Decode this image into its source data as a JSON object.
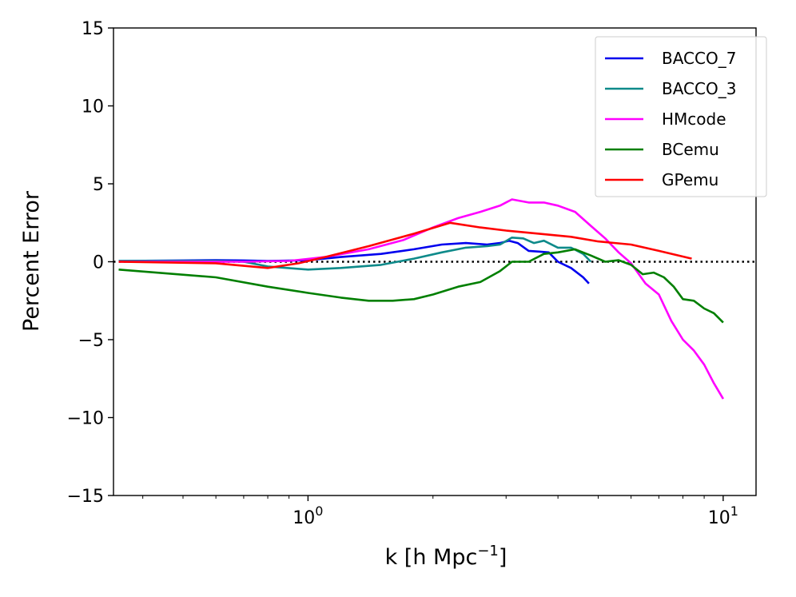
{
  "chart_data": {
    "type": "line",
    "title": "",
    "xlabel": "k [h Mpc",
    "xlabel_sup": "−1",
    "xlabel_end": "]",
    "ylabel": "Percent Error",
    "xscale": "log",
    "xlim": [
      0.34,
      12
    ],
    "ylim": [
      -15,
      15
    ],
    "yticks": [
      {
        "value": 15,
        "label": "15"
      },
      {
        "value": 10,
        "label": "10"
      },
      {
        "value": 5,
        "label": "5"
      },
      {
        "value": 0,
        "label": "0"
      },
      {
        "value": -5,
        "label": "−5"
      },
      {
        "value": -10,
        "label": "−10"
      },
      {
        "value": -15,
        "label": "−15"
      }
    ],
    "xticks": [
      {
        "value": 1,
        "base": "10",
        "exp": "0"
      },
      {
        "value": 10,
        "base": "10",
        "exp": "1"
      }
    ],
    "legend_position": "top-right",
    "reference_line": {
      "y": 0,
      "style": "dotted",
      "color": "#000000"
    },
    "series": [
      {
        "name": "BACCO_7",
        "color": "#0000ee",
        "x": [
          0.35,
          0.5,
          0.6,
          0.7,
          0.8,
          1.0,
          1.2,
          1.5,
          1.8,
          2.1,
          2.4,
          2.7,
          2.9,
          3.05,
          3.2,
          3.4,
          3.6,
          3.8,
          4.0,
          4.3,
          4.6,
          4.75
        ],
        "y": [
          0.05,
          0.08,
          0.1,
          0.08,
          0.05,
          0.1,
          0.3,
          0.5,
          0.8,
          1.1,
          1.2,
          1.1,
          1.2,
          1.35,
          1.2,
          0.7,
          0.65,
          0.6,
          0.0,
          -0.4,
          -1.0,
          -1.4
        ]
      },
      {
        "name": "BACCO_3",
        "color": "#0e8a8a",
        "x": [
          0.35,
          0.5,
          0.6,
          0.7,
          0.8,
          1.0,
          1.2,
          1.5,
          1.8,
          2.1,
          2.4,
          2.7,
          2.9,
          3.1,
          3.3,
          3.5,
          3.7,
          4.0,
          4.3,
          4.6,
          4.8
        ],
        "y": [
          0.05,
          0.05,
          0.05,
          0.0,
          -0.3,
          -0.5,
          -0.4,
          -0.2,
          0.2,
          0.6,
          0.9,
          1.0,
          1.1,
          1.55,
          1.5,
          1.2,
          1.35,
          0.9,
          0.9,
          0.5,
          0.0
        ]
      },
      {
        "name": "HMcode",
        "color": "#ff00ff",
        "x": [
          0.35,
          0.5,
          0.7,
          0.9,
          1.1,
          1.4,
          1.7,
          2.0,
          2.3,
          2.6,
          2.9,
          3.1,
          3.4,
          3.7,
          4.0,
          4.4,
          4.8,
          5.2,
          5.6,
          6.0,
          6.5,
          7.0,
          7.5,
          8.0,
          8.5,
          9.0,
          9.5,
          10.0
        ],
        "y": [
          0.0,
          0.0,
          0.0,
          0.05,
          0.3,
          0.8,
          1.4,
          2.2,
          2.8,
          3.2,
          3.6,
          4.0,
          3.8,
          3.8,
          3.6,
          3.2,
          2.3,
          1.5,
          0.6,
          -0.1,
          -1.4,
          -2.1,
          -3.8,
          -5.0,
          -5.7,
          -6.6,
          -7.8,
          -8.8
        ]
      },
      {
        "name": "BCemu",
        "color": "#007f00",
        "x": [
          0.35,
          0.6,
          0.8,
          1.0,
          1.2,
          1.4,
          1.6,
          1.8,
          2.0,
          2.3,
          2.6,
          2.9,
          3.1,
          3.4,
          3.7,
          4.0,
          4.4,
          4.8,
          5.2,
          5.6,
          6.0,
          6.4,
          6.8,
          7.2,
          7.6,
          8.0,
          8.5,
          9.0,
          9.5,
          10.0
        ],
        "y": [
          -0.5,
          -1.0,
          -1.6,
          -2.0,
          -2.3,
          -2.5,
          -2.5,
          -2.4,
          -2.1,
          -1.6,
          -1.3,
          -0.6,
          0.0,
          0.0,
          0.5,
          0.6,
          0.8,
          0.4,
          0.0,
          0.1,
          -0.2,
          -0.8,
          -0.7,
          -1.0,
          -1.6,
          -2.4,
          -2.5,
          -3.0,
          -3.3,
          -3.9
        ]
      },
      {
        "name": "GPemu",
        "color": "#ff0000",
        "x": [
          0.35,
          0.6,
          0.8,
          0.95,
          1.1,
          1.4,
          1.8,
          2.2,
          2.6,
          3.0,
          3.6,
          4.3,
          5.0,
          6.0,
          7.0,
          8.4
        ],
        "y": [
          0.0,
          -0.1,
          -0.4,
          -0.1,
          0.3,
          1.0,
          1.8,
          2.5,
          2.2,
          2.0,
          1.8,
          1.6,
          1.3,
          1.1,
          0.7,
          0.2
        ]
      }
    ]
  }
}
